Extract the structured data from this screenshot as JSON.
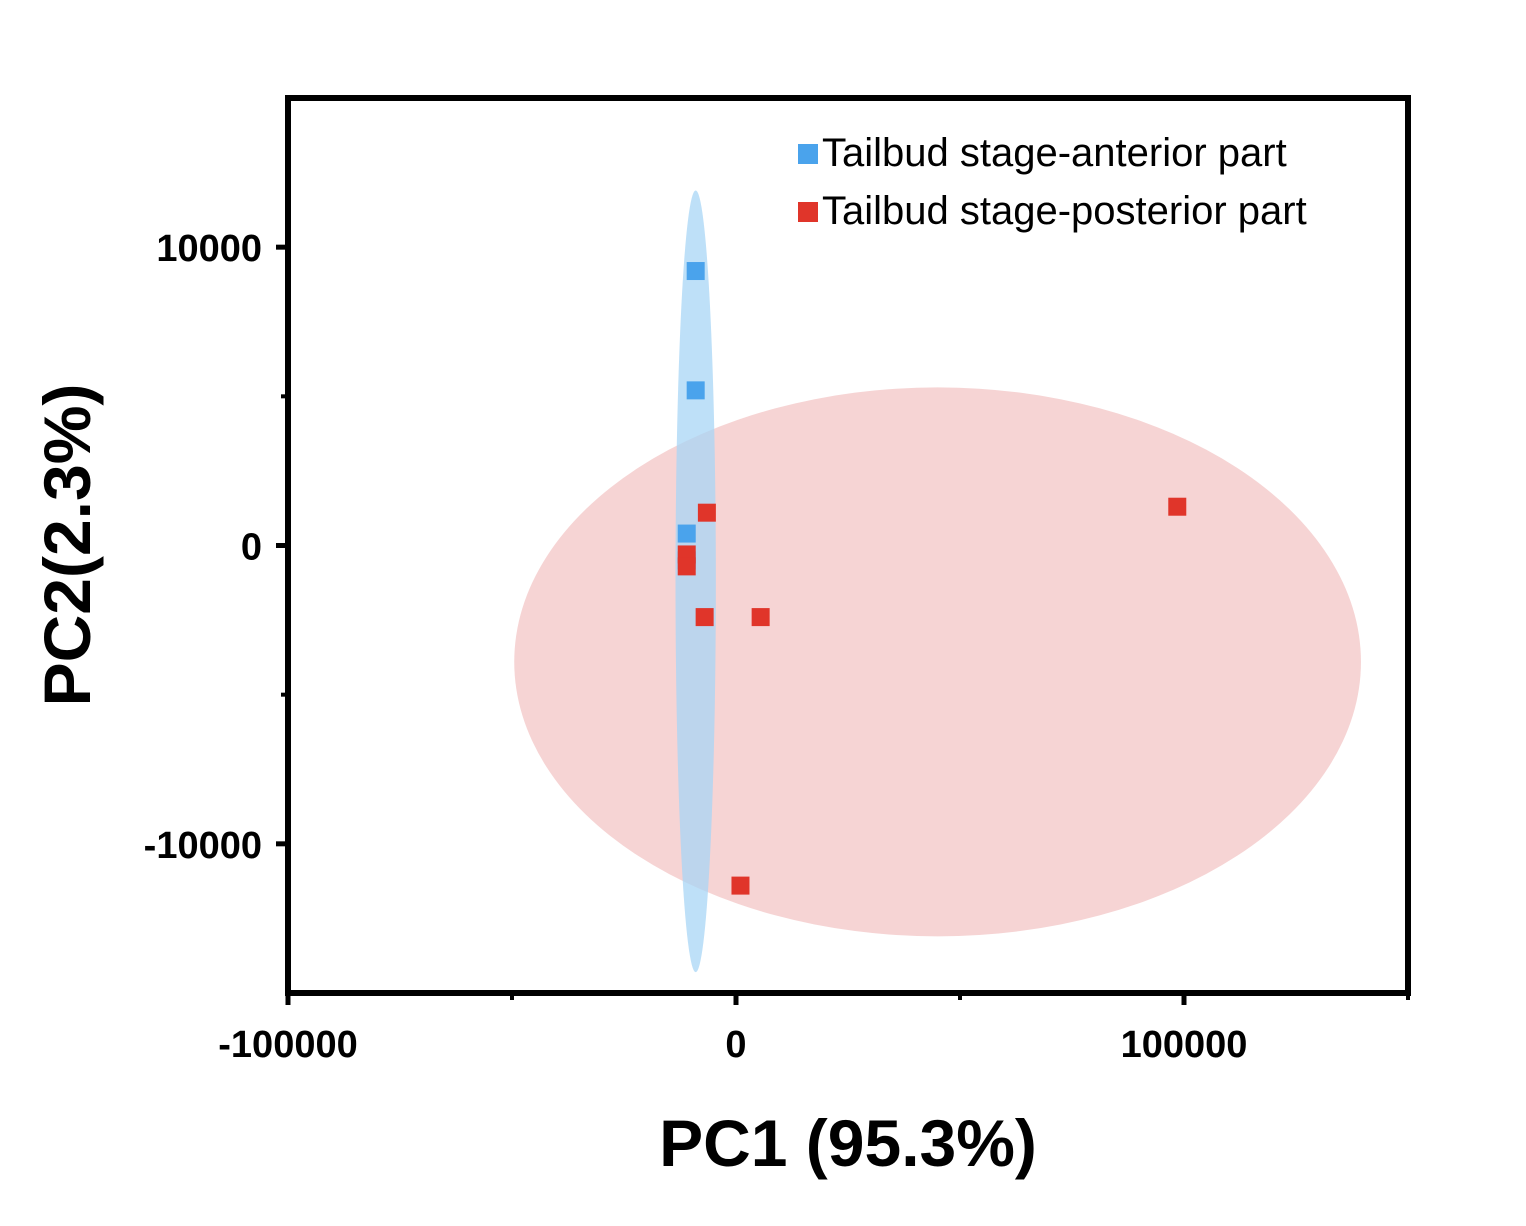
{
  "chart_data": {
    "type": "scatter",
    "title": "",
    "xlabel": "PC1 (95.3%)",
    "ylabel": "PC2(2.3%)",
    "xlim": [
      -100000,
      150000
    ],
    "ylim": [
      -15000,
      15000
    ],
    "x_ticks": [
      -100000,
      0,
      100000
    ],
    "x_tick_labels": [
      "-100000",
      "0",
      "100000"
    ],
    "x_minor_ticks": [
      -50000,
      50000,
      150000
    ],
    "y_ticks": [
      10000,
      0,
      -10000
    ],
    "y_tick_labels": [
      "10000",
      "0",
      "-10000"
    ],
    "y_minor_ticks": [
      5000,
      -5000
    ],
    "grid": false,
    "legend_position": "top-right",
    "series": [
      {
        "name": "Tailbud stage-anterior part",
        "color": "#4aa3ec",
        "ellipse_color": "#a8d5f5",
        "points": [
          {
            "x": -9000,
            "y": 9200
          },
          {
            "x": -9000,
            "y": 5200
          },
          {
            "x": -11000,
            "y": 400
          },
          {
            "x": -11000,
            "y": -500
          }
        ],
        "ellipse": {
          "cx": -9000,
          "cy": -1200,
          "rx": 4500,
          "ry": 13100
        }
      },
      {
        "name": "Tailbud stage-posterior part",
        "color": "#e0352a",
        "ellipse_color": "#f3c4c4",
        "points": [
          {
            "x": 98500,
            "y": 1300
          },
          {
            "x": -6500,
            "y": 1100
          },
          {
            "x": -11000,
            "y": -300
          },
          {
            "x": -11000,
            "y": -700
          },
          {
            "x": -7000,
            "y": -2400
          },
          {
            "x": 5500,
            "y": -2400
          },
          {
            "x": 1000,
            "y": -11400
          }
        ],
        "ellipse": {
          "cx": 45000,
          "cy": -3900,
          "rx": 94500,
          "ry": 9200
        }
      }
    ]
  }
}
